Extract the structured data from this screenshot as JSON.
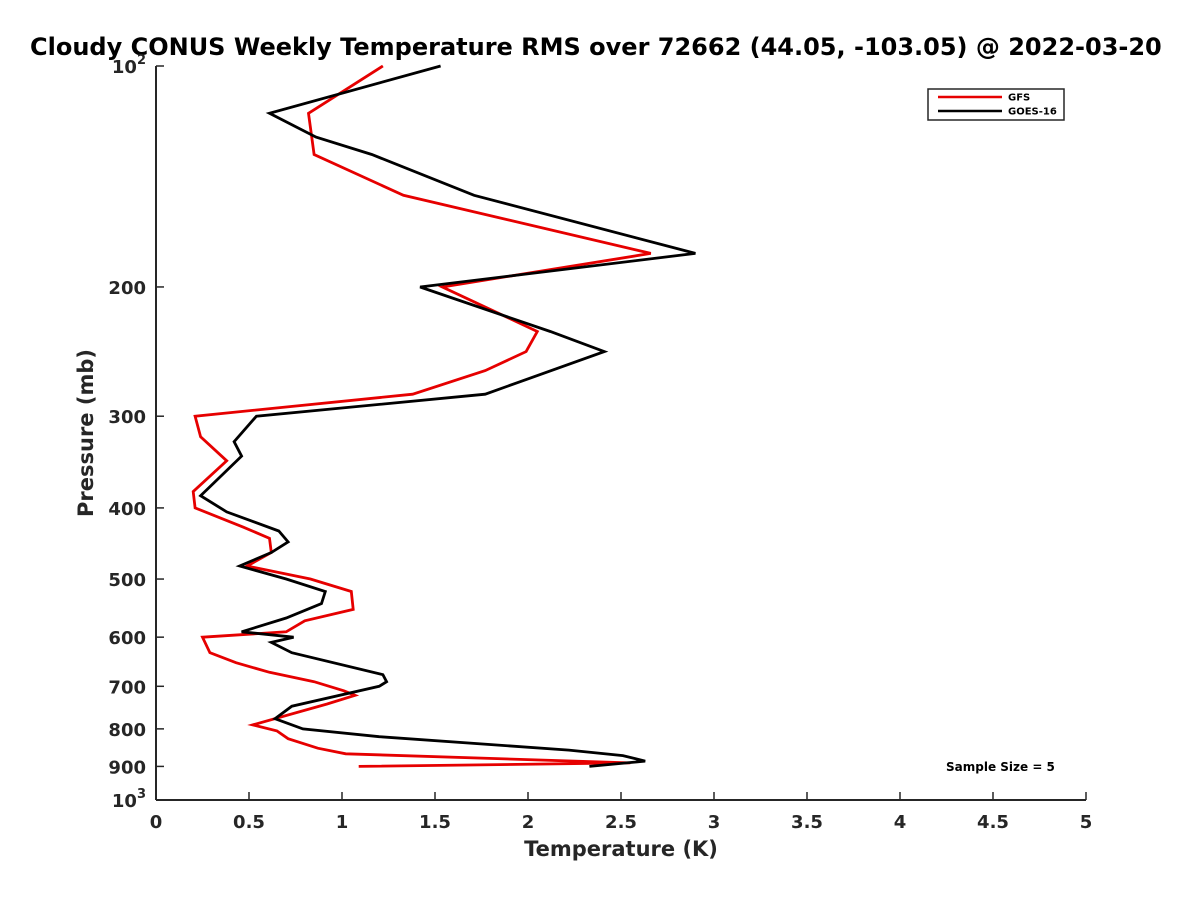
{
  "chart_data": {
    "type": "line",
    "title": "Cloudy CONUS Weekly Temperature RMS over 72662 (44.05, -103.05) @ 2022-03-20",
    "xlabel": "Temperature (K)",
    "ylabel": "Pressure (mb)",
    "xlim": [
      0,
      5
    ],
    "ylim": [
      1000,
      100
    ],
    "yscale": "log",
    "y_reversed": true,
    "x_ticks": [
      0,
      0.5,
      1,
      1.5,
      2,
      2.5,
      3,
      3.5,
      4,
      4.5,
      5
    ],
    "x_tick_labels": [
      "0",
      "0.5",
      "1",
      "1.5",
      "2",
      "2.5",
      "3",
      "3.5",
      "4",
      "4.5",
      "5"
    ],
    "y_ticks": [
      {
        "value": 100,
        "base": "10",
        "exp": "2"
      },
      {
        "value": 200,
        "label": "200"
      },
      {
        "value": 300,
        "label": "300"
      },
      {
        "value": 400,
        "label": "400"
      },
      {
        "value": 500,
        "label": "500"
      },
      {
        "value": 600,
        "label": "600"
      },
      {
        "value": 700,
        "label": "700"
      },
      {
        "value": 800,
        "label": "800"
      },
      {
        "value": 900,
        "label": "900"
      },
      {
        "value": 1000,
        "base": "10",
        "exp": "3"
      }
    ],
    "grid": false,
    "legend_position": "top-right",
    "series": [
      {
        "name": "GFS",
        "color": "#e60000",
        "points": [
          {
            "x": 1.22,
            "y": 100
          },
          {
            "x": 0.82,
            "y": 116
          },
          {
            "x": 0.85,
            "y": 132
          },
          {
            "x": 1.33,
            "y": 150
          },
          {
            "x": 2.66,
            "y": 180
          },
          {
            "x": 1.54,
            "y": 200
          },
          {
            "x": 2.05,
            "y": 230
          },
          {
            "x": 1.99,
            "y": 245
          },
          {
            "x": 1.77,
            "y": 260
          },
          {
            "x": 1.38,
            "y": 280
          },
          {
            "x": 0.21,
            "y": 300
          },
          {
            "x": 0.24,
            "y": 320
          },
          {
            "x": 0.38,
            "y": 345
          },
          {
            "x": 0.2,
            "y": 380
          },
          {
            "x": 0.21,
            "y": 400
          },
          {
            "x": 0.47,
            "y": 425
          },
          {
            "x": 0.61,
            "y": 440
          },
          {
            "x": 0.62,
            "y": 460
          },
          {
            "x": 0.49,
            "y": 480
          },
          {
            "x": 0.83,
            "y": 500
          },
          {
            "x": 1.05,
            "y": 520
          },
          {
            "x": 1.06,
            "y": 550
          },
          {
            "x": 0.8,
            "y": 570
          },
          {
            "x": 0.7,
            "y": 590
          },
          {
            "x": 0.25,
            "y": 600
          },
          {
            "x": 0.29,
            "y": 630
          },
          {
            "x": 0.43,
            "y": 650
          },
          {
            "x": 0.61,
            "y": 670
          },
          {
            "x": 0.85,
            "y": 690
          },
          {
            "x": 1.01,
            "y": 710
          },
          {
            "x": 1.07,
            "y": 720
          },
          {
            "x": 0.92,
            "y": 740
          },
          {
            "x": 0.52,
            "y": 790
          },
          {
            "x": 0.65,
            "y": 805
          },
          {
            "x": 0.71,
            "y": 825
          },
          {
            "x": 0.87,
            "y": 850
          },
          {
            "x": 1.02,
            "y": 865
          },
          {
            "x": 2.55,
            "y": 890
          },
          {
            "x": 1.09,
            "y": 900
          }
        ]
      },
      {
        "name": "GOES-16",
        "color": "#000000",
        "points": [
          {
            "x": 1.53,
            "y": 100
          },
          {
            "x": 0.61,
            "y": 116
          },
          {
            "x": 0.86,
            "y": 125
          },
          {
            "x": 1.16,
            "y": 132
          },
          {
            "x": 1.71,
            "y": 150
          },
          {
            "x": 2.9,
            "y": 180
          },
          {
            "x": 1.42,
            "y": 200
          },
          {
            "x": 2.12,
            "y": 230
          },
          {
            "x": 2.41,
            "y": 245
          },
          {
            "x": 1.77,
            "y": 280
          },
          {
            "x": 0.54,
            "y": 300
          },
          {
            "x": 0.42,
            "y": 325
          },
          {
            "x": 0.46,
            "y": 340
          },
          {
            "x": 0.24,
            "y": 385
          },
          {
            "x": 0.38,
            "y": 405
          },
          {
            "x": 0.66,
            "y": 430
          },
          {
            "x": 0.71,
            "y": 445
          },
          {
            "x": 0.62,
            "y": 460
          },
          {
            "x": 0.45,
            "y": 480
          },
          {
            "x": 0.7,
            "y": 500
          },
          {
            "x": 0.91,
            "y": 520
          },
          {
            "x": 0.89,
            "y": 540
          },
          {
            "x": 0.7,
            "y": 565
          },
          {
            "x": 0.46,
            "y": 590
          },
          {
            "x": 0.74,
            "y": 600
          },
          {
            "x": 0.62,
            "y": 610
          },
          {
            "x": 0.73,
            "y": 630
          },
          {
            "x": 1.22,
            "y": 675
          },
          {
            "x": 1.24,
            "y": 690
          },
          {
            "x": 1.2,
            "y": 700
          },
          {
            "x": 0.73,
            "y": 745
          },
          {
            "x": 0.64,
            "y": 775
          },
          {
            "x": 0.79,
            "y": 800
          },
          {
            "x": 1.2,
            "y": 820
          },
          {
            "x": 2.22,
            "y": 855
          },
          {
            "x": 2.51,
            "y": 870
          },
          {
            "x": 2.63,
            "y": 885
          },
          {
            "x": 2.33,
            "y": 900
          }
        ]
      }
    ],
    "annotations": [
      {
        "text": "Sample Size = 5",
        "position": "bottom-right"
      }
    ]
  }
}
